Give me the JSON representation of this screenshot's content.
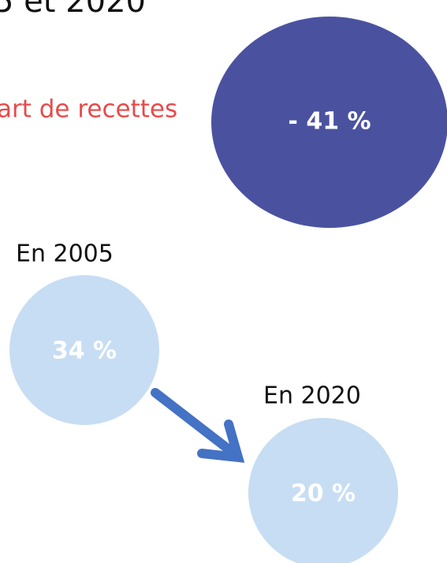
{
  "header": {
    "title": "5 et 2020",
    "subtitle": "art de recettes"
  },
  "summary": {
    "label": "- 41 %"
  },
  "nodes": [
    {
      "year": "En 2005",
      "label": "34 %"
    },
    {
      "year": "En 2020",
      "label": "20 %"
    }
  ]
}
